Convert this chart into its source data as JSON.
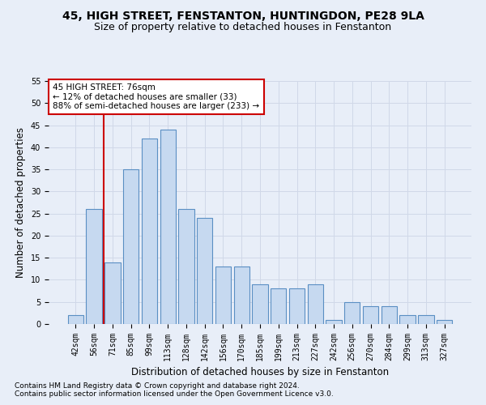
{
  "title1": "45, HIGH STREET, FENSTANTON, HUNTINGDON, PE28 9LA",
  "title2": "Size of property relative to detached houses in Fenstanton",
  "xlabel": "Distribution of detached houses by size in Fenstanton",
  "ylabel": "Number of detached properties",
  "categories": [
    "42sqm",
    "56sqm",
    "71sqm",
    "85sqm",
    "99sqm",
    "113sqm",
    "128sqm",
    "142sqm",
    "156sqm",
    "170sqm",
    "185sqm",
    "199sqm",
    "213sqm",
    "227sqm",
    "242sqm",
    "256sqm",
    "270sqm",
    "284sqm",
    "299sqm",
    "313sqm",
    "327sqm"
  ],
  "values": [
    2,
    26,
    14,
    35,
    42,
    44,
    26,
    24,
    13,
    13,
    9,
    8,
    8,
    9,
    1,
    5,
    4,
    4,
    2,
    2,
    1
  ],
  "bar_color": "#c6d9f0",
  "bar_edge_color": "#5a8fc3",
  "bar_linewidth": 0.8,
  "grid_color": "#d0d8e8",
  "annotation_text": "45 HIGH STREET: 76sqm\n← 12% of detached houses are smaller (33)\n88% of semi-detached houses are larger (233) →",
  "annotation_box_color": "#ffffff",
  "annotation_box_edge": "#cc0000",
  "vline_x_idx": 2,
  "vline_color": "#cc0000",
  "vline_linewidth": 1.5,
  "ylim": [
    0,
    55
  ],
  "yticks": [
    0,
    5,
    10,
    15,
    20,
    25,
    30,
    35,
    40,
    45,
    50,
    55
  ],
  "footnote1": "Contains HM Land Registry data © Crown copyright and database right 2024.",
  "footnote2": "Contains public sector information licensed under the Open Government Licence v3.0.",
  "bg_color": "#e8eef8",
  "plot_bg_color": "#e8eef8",
  "title1_fontsize": 10,
  "title2_fontsize": 9,
  "axis_fontsize": 8.5,
  "tick_fontsize": 7,
  "footnote_fontsize": 6.5,
  "annotation_fontsize": 7.5
}
